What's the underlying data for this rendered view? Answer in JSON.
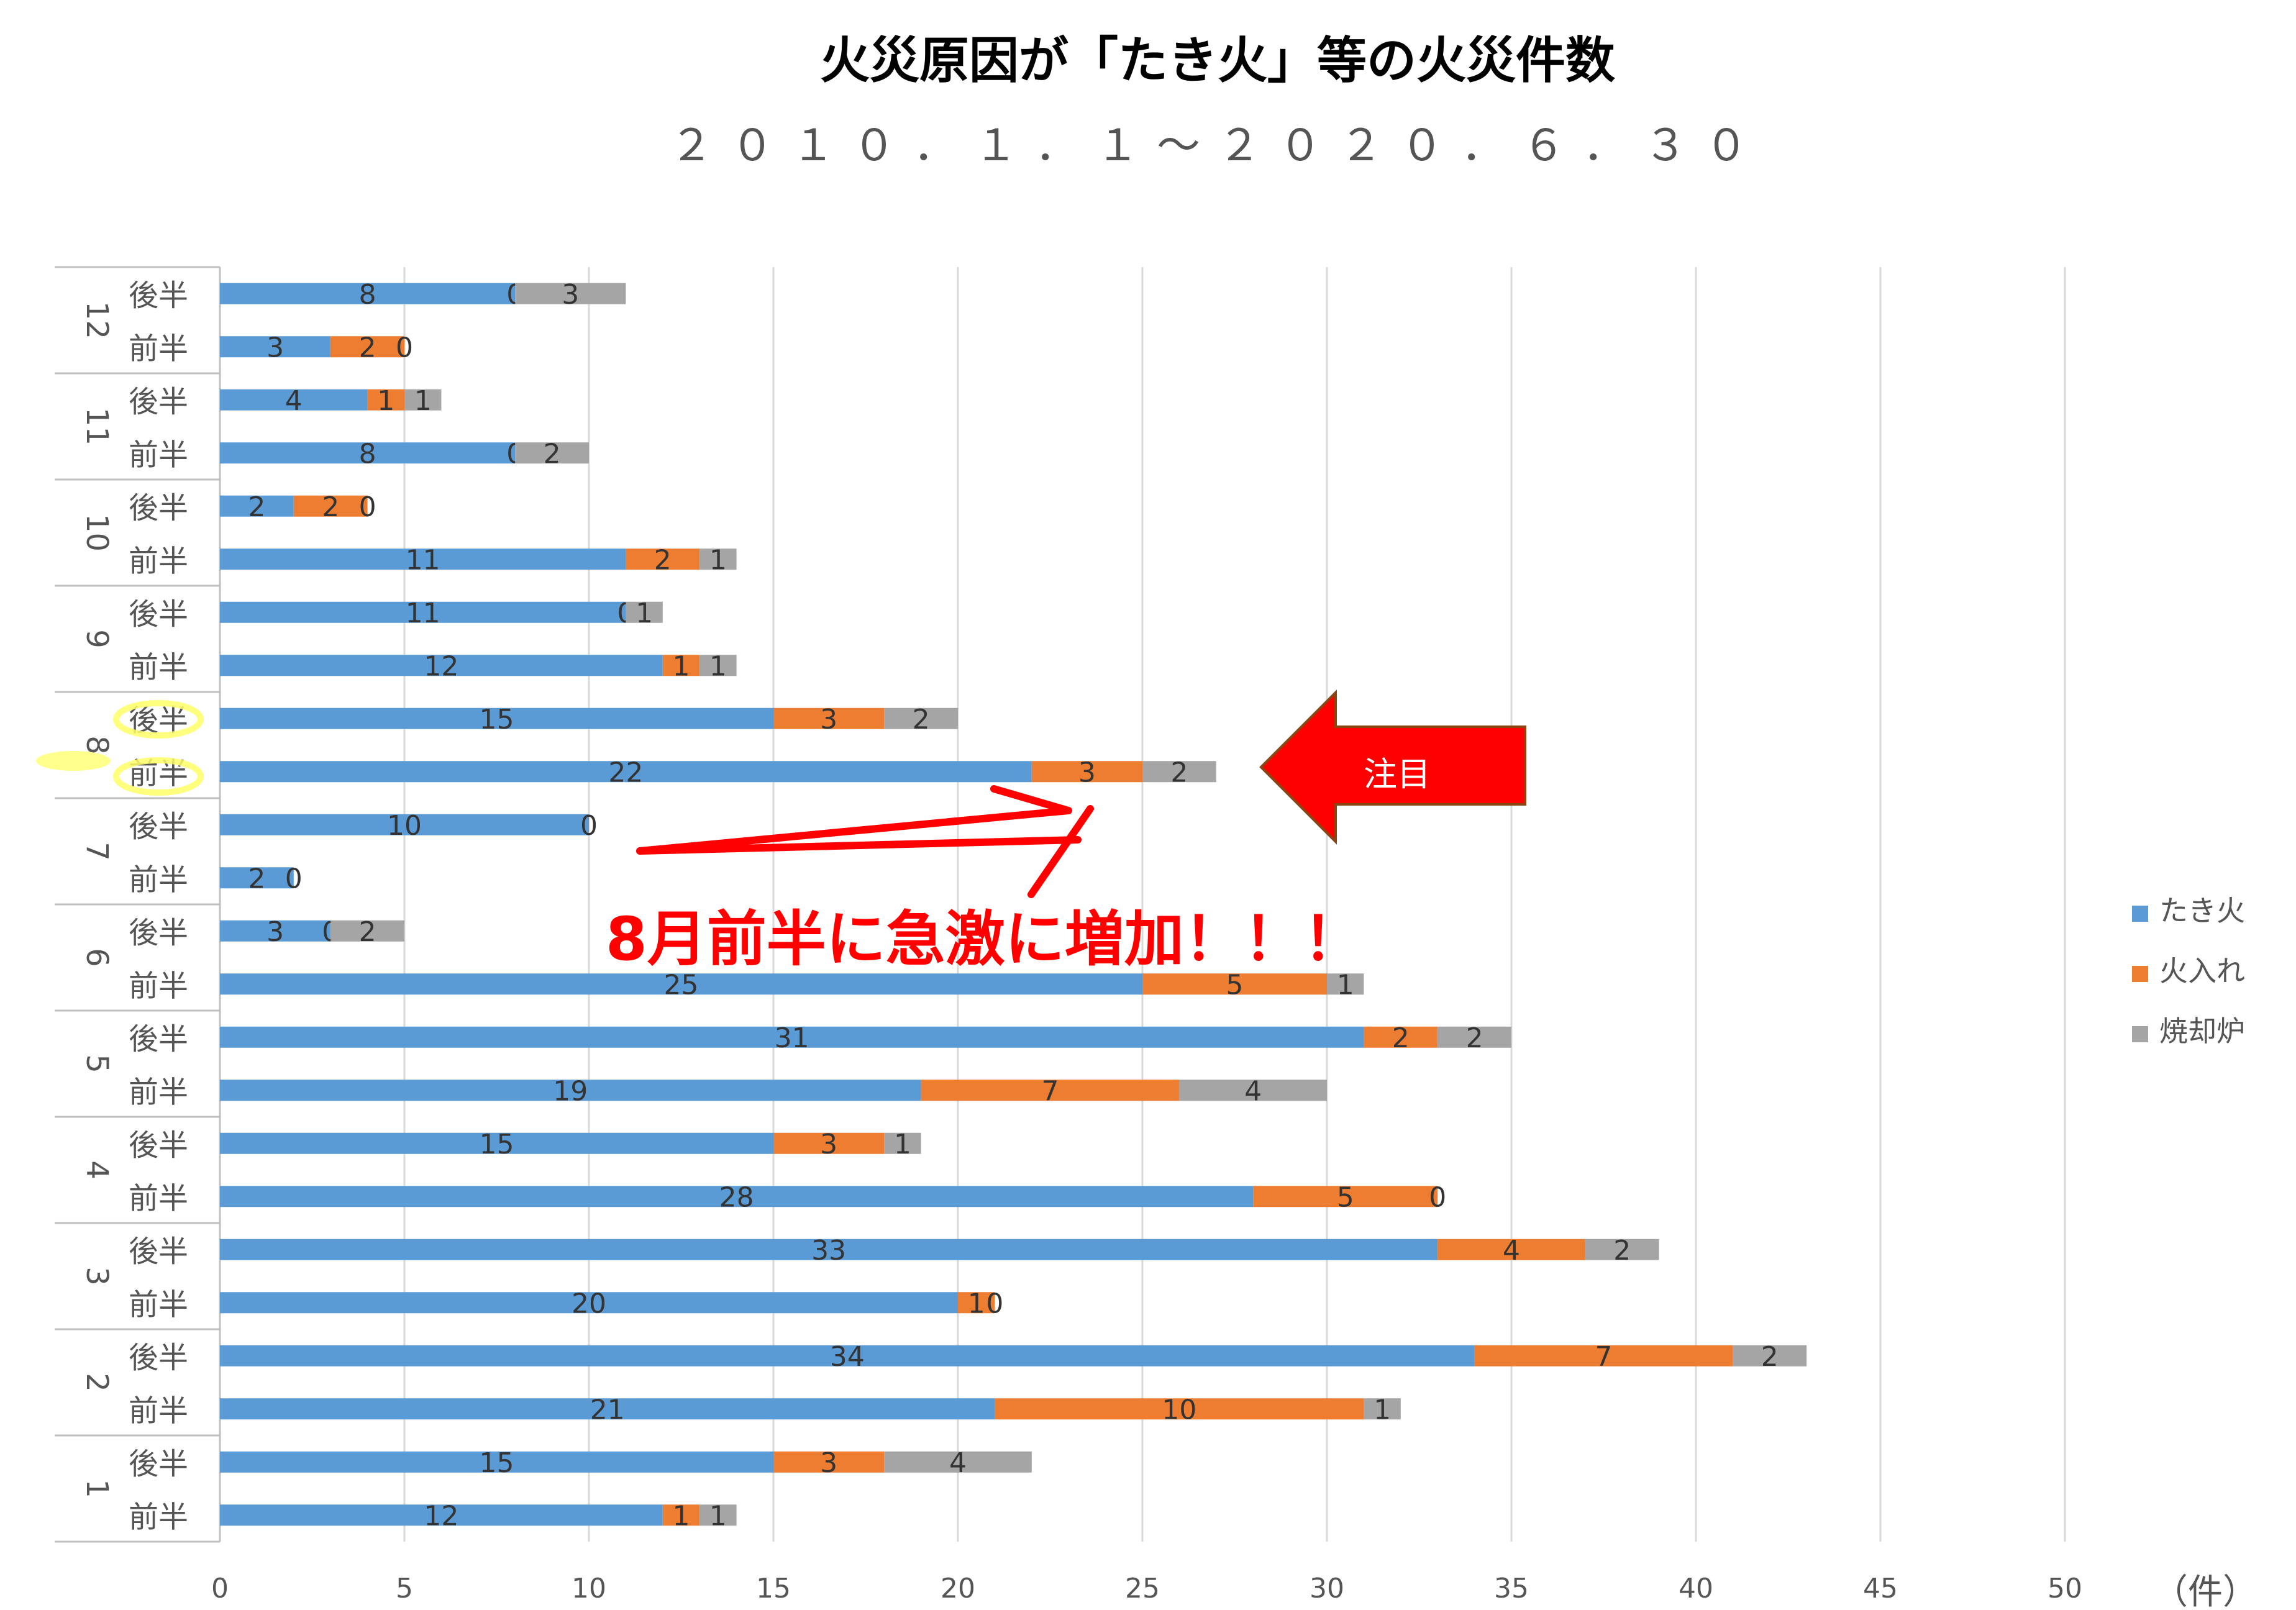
{
  "chart_data": {
    "type": "bar",
    "orientation": "horizontal",
    "stacked": true,
    "title": "火災原因が「たき火」等の火災件数",
    "subtitle": "２０１０．１．１～２０２０．６．３０",
    "x_unit_label": "（件）",
    "xlim": [
      0,
      50
    ],
    "x_ticks": [
      0,
      5,
      10,
      15,
      20,
      25,
      30,
      35,
      40,
      45,
      50
    ],
    "grid": true,
    "legend_position": "right",
    "months": [
      "1",
      "2",
      "3",
      "4",
      "5",
      "6",
      "7",
      "8",
      "9",
      "10",
      "11",
      "12"
    ],
    "halves": [
      "前半",
      "後半"
    ],
    "series": [
      {
        "name": "たき火",
        "color": "#5B9BD5",
        "values": [
          12,
          15,
          21,
          34,
          20,
          33,
          28,
          15,
          19,
          31,
          25,
          3,
          2,
          10,
          22,
          15,
          12,
          11,
          11,
          2,
          8,
          4,
          3,
          8
        ]
      },
      {
        "name": "火入れ",
        "color": "#ED7D31",
        "values": [
          1,
          3,
          10,
          7,
          1,
          4,
          5,
          3,
          7,
          2,
          5,
          0,
          0,
          0,
          3,
          3,
          1,
          0,
          2,
          2,
          0,
          1,
          2,
          0
        ]
      },
      {
        "name": "焼却炉",
        "color": "#A5A5A5",
        "values": [
          1,
          4,
          1,
          2,
          0,
          2,
          0,
          1,
          4,
          2,
          1,
          2,
          null,
          null,
          2,
          2,
          1,
          1,
          1,
          0,
          2,
          1,
          0,
          3
        ]
      }
    ],
    "annotations": {
      "arrow_label": "注目",
      "callout": "8月前半に急激に増加！！！"
    }
  }
}
